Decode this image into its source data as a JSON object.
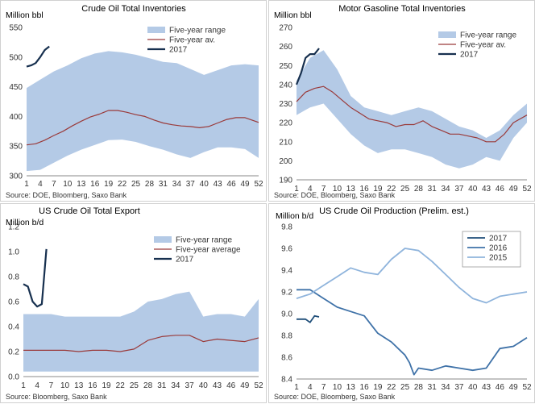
{
  "chart_data": [
    {
      "type": "line",
      "title": "Crude Oil Total Inventories",
      "ylabel": "Million bbl",
      "source": "Source: DOE, Bloomberg, Saxo Bank",
      "xticks": [
        "1",
        "4",
        "7",
        "10",
        "13",
        "16",
        "19",
        "22",
        "25",
        "28",
        "31",
        "34",
        "37",
        "40",
        "43",
        "46",
        "49",
        "52"
      ],
      "yticks": [
        "300",
        "350",
        "400",
        "450",
        "500",
        "550"
      ],
      "ylim": [
        300,
        550
      ],
      "xlim": [
        1,
        52
      ],
      "legend_position": "top-right",
      "colors": {
        "range": "#b4cae6",
        "average": "#9a3a3a",
        "current": "#17304f"
      },
      "range": {
        "name": "Five-year range",
        "weeks": [
          1,
          4,
          7,
          10,
          13,
          16,
          19,
          22,
          25,
          28,
          31,
          34,
          37,
          40,
          43,
          46,
          49,
          52
        ],
        "low": [
          308,
          310,
          322,
          334,
          344,
          352,
          360,
          361,
          357,
          350,
          344,
          336,
          330,
          340,
          348,
          348,
          345,
          330
        ],
        "high": [
          448,
          462,
          476,
          486,
          498,
          506,
          510,
          508,
          504,
          498,
          492,
          490,
          480,
          470,
          478,
          486,
          488,
          486
        ]
      },
      "series": [
        {
          "name": "Five-year av.",
          "x": [
            1,
            3,
            5,
            7,
            9,
            11,
            13,
            15,
            17,
            19,
            21,
            23,
            25,
            27,
            29,
            31,
            33,
            35,
            37,
            39,
            41,
            43,
            45,
            47,
            49,
            52
          ],
          "values": [
            352,
            354,
            360,
            368,
            375,
            384,
            392,
            399,
            404,
            410,
            410,
            407,
            403,
            400,
            394,
            389,
            386,
            384,
            383,
            381,
            383,
            389,
            395,
            398,
            398,
            390
          ]
        },
        {
          "name": "2017",
          "x": [
            1,
            2,
            3,
            4,
            5,
            6
          ],
          "values": [
            484,
            486,
            490,
            500,
            512,
            518
          ]
        }
      ]
    },
    {
      "type": "line",
      "title": "Motor Gasoline Total Inventories",
      "ylabel": "Million bbl",
      "source": "Source: DOE, Bloomberg, Saxo Bank",
      "xticks": [
        "1",
        "4",
        "7",
        "10",
        "13",
        "16",
        "19",
        "22",
        "25",
        "28",
        "31",
        "34",
        "37",
        "40",
        "43",
        "46",
        "49",
        "52"
      ],
      "yticks": [
        "190",
        "200",
        "210",
        "220",
        "230",
        "240",
        "250",
        "260",
        "270"
      ],
      "ylim": [
        190,
        270
      ],
      "xlim": [
        1,
        52
      ],
      "legend_position": "top-right",
      "colors": {
        "range": "#b4cae6",
        "average": "#9a3a3a",
        "current": "#17304f"
      },
      "range": {
        "weeks": [
          1,
          4,
          7,
          10,
          13,
          16,
          19,
          22,
          25,
          28,
          31,
          34,
          37,
          40,
          43,
          46,
          49,
          52
        ],
        "low": [
          224,
          228,
          230,
          222,
          214,
          208,
          204,
          206,
          206,
          204,
          202,
          198,
          196,
          198,
          202,
          200,
          212,
          220
        ],
        "high": [
          242,
          254,
          258,
          248,
          234,
          228,
          226,
          224,
          226,
          228,
          226,
          222,
          218,
          216,
          212,
          216,
          224,
          230
        ]
      },
      "series": [
        {
          "name": "Five-year av.",
          "x": [
            1,
            3,
            5,
            7,
            9,
            11,
            13,
            15,
            17,
            19,
            21,
            23,
            25,
            27,
            29,
            31,
            33,
            35,
            37,
            39,
            41,
            43,
            45,
            47,
            49,
            52
          ],
          "values": [
            231,
            236,
            238,
            239,
            236,
            232,
            228,
            225,
            222,
            221,
            220,
            218,
            219,
            219,
            221,
            218,
            216,
            214,
            214,
            213,
            212,
            210,
            210,
            214,
            220,
            224
          ]
        },
        {
          "name": "2017",
          "x": [
            1,
            2,
            3,
            4,
            5,
            6
          ],
          "values": [
            240,
            246,
            254,
            256,
            256,
            259
          ]
        }
      ]
    },
    {
      "type": "line",
      "title": "US Crude Oil Total Export",
      "ylabel": "Million b/d",
      "source": "Source: Bloomberg, Saxo Bank",
      "xticks": [
        "1",
        "4",
        "7",
        "10",
        "13",
        "16",
        "19",
        "22",
        "25",
        "28",
        "31",
        "34",
        "37",
        "40",
        "43",
        "46",
        "49",
        "52"
      ],
      "yticks": [
        "0.0",
        "0.2",
        "0.4",
        "0.6",
        "0.8",
        "1.0",
        "1.2"
      ],
      "ylim": [
        0,
        1.2
      ],
      "xlim": [
        1,
        52
      ],
      "legend_position": "right",
      "colors": {
        "range": "#b4cae6",
        "average": "#9a3a3a",
        "current": "#17304f"
      },
      "range": {
        "weeks": [
          1,
          4,
          7,
          10,
          13,
          16,
          19,
          22,
          25,
          28,
          31,
          34,
          37,
          40,
          43,
          46,
          49,
          52
        ],
        "low": [
          0.04,
          0.04,
          0.04,
          0.04,
          0.04,
          0.04,
          0.04,
          0.04,
          0.04,
          0.04,
          0.04,
          0.04,
          0.04,
          0.04,
          0.04,
          0.04,
          0.04,
          0.04
        ],
        "high": [
          0.5,
          0.5,
          0.5,
          0.48,
          0.48,
          0.48,
          0.48,
          0.48,
          0.52,
          0.6,
          0.62,
          0.66,
          0.68,
          0.48,
          0.5,
          0.5,
          0.48,
          0.62
        ]
      },
      "series": [
        {
          "name": "Five-year average",
          "x": [
            1,
            4,
            7,
            10,
            13,
            16,
            19,
            22,
            25,
            28,
            31,
            34,
            37,
            40,
            43,
            46,
            49,
            52
          ],
          "values": [
            0.21,
            0.21,
            0.21,
            0.21,
            0.2,
            0.21,
            0.21,
            0.2,
            0.22,
            0.29,
            0.32,
            0.33,
            0.33,
            0.28,
            0.3,
            0.29,
            0.28,
            0.31
          ]
        },
        {
          "name": "2017",
          "x": [
            1,
            2,
            3,
            4,
            5,
            6
          ],
          "values": [
            0.74,
            0.72,
            0.6,
            0.56,
            0.58,
            1.02
          ]
        }
      ]
    },
    {
      "type": "line",
      "title": "US Crude Oil Production (Prelim. est.)",
      "ylabel": "Million b/d",
      "source": "Source: DOE, Bloomberg, Saxo Bank",
      "xticks": [
        "1",
        "4",
        "7",
        "10",
        "13",
        "16",
        "19",
        "22",
        "25",
        "28",
        "31",
        "34",
        "37",
        "40",
        "43",
        "46",
        "49",
        "52"
      ],
      "yticks": [
        "8.4",
        "8.6",
        "8.8",
        "9.0",
        "9.2",
        "9.4",
        "9.6",
        "9.8"
      ],
      "ylim": [
        8.4,
        9.8
      ],
      "xlim": [
        1,
        52
      ],
      "legend_position": "right",
      "colors": {
        "2017": "#1f4e79",
        "2016": "#3f72a8",
        "2015": "#8fb4dc"
      },
      "series": [
        {
          "name": "2017",
          "x": [
            1,
            2,
            3,
            4,
            5,
            6
          ],
          "values": [
            8.95,
            8.95,
            8.95,
            8.92,
            8.98,
            8.97
          ]
        },
        {
          "name": "2016",
          "x": [
            1,
            4,
            7,
            10,
            13,
            16,
            19,
            22,
            25,
            26,
            27,
            28,
            31,
            34,
            37,
            40,
            43,
            46,
            49,
            52
          ],
          "values": [
            9.22,
            9.22,
            9.14,
            9.06,
            9.02,
            8.98,
            8.82,
            8.74,
            8.62,
            8.55,
            8.44,
            8.5,
            8.48,
            8.52,
            8.5,
            8.48,
            8.5,
            8.68,
            8.7,
            8.78
          ]
        },
        {
          "name": "2015",
          "x": [
            1,
            4,
            7,
            10,
            13,
            16,
            19,
            22,
            25,
            28,
            31,
            34,
            37,
            40,
            43,
            46,
            49,
            52
          ],
          "values": [
            9.14,
            9.18,
            9.26,
            9.34,
            9.42,
            9.38,
            9.36,
            9.5,
            9.6,
            9.58,
            9.48,
            9.36,
            9.24,
            9.14,
            9.1,
            9.16,
            9.18,
            9.2
          ]
        }
      ]
    }
  ]
}
